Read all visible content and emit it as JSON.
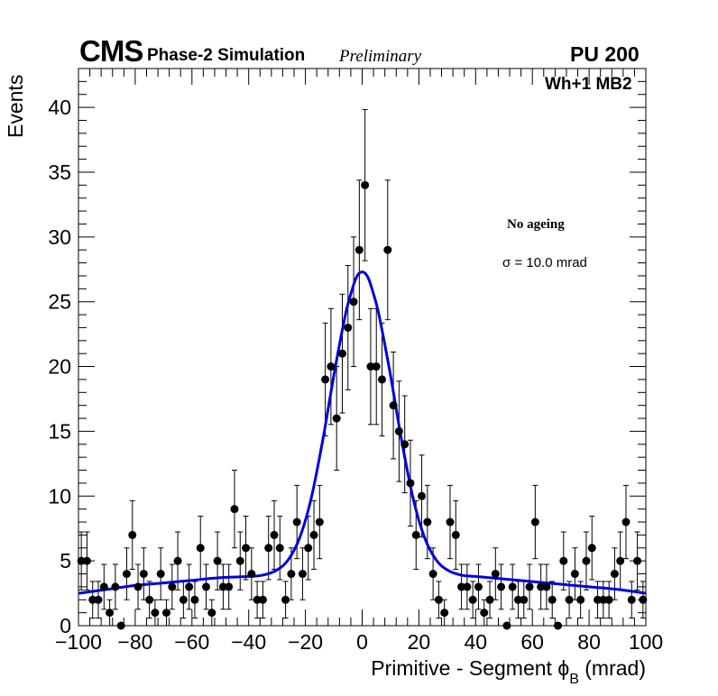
{
  "header": {
    "experiment": "CMS",
    "simulation": "Phase-2 Simulation",
    "status": "Preliminary",
    "pileup": "PU 200",
    "chamber": "Wh+1 MB2"
  },
  "legend": {
    "condition": "No ageing",
    "sigma_symbol": "σ",
    "sigma_text": "= 10.0 mrad"
  },
  "axes": {
    "x_title": "Primitive - Segment ϕ",
    "x_title_sub": "B",
    "x_title_unit": " (mrad)",
    "y_title": "Events"
  },
  "colors": {
    "fit": "#0000dd",
    "points": "#000000"
  },
  "chart_data": {
    "type": "scatter",
    "title": "CMS Phase-2 Simulation Preliminary",
    "xlabel": "Primitive - Segment ϕB (mrad)",
    "ylabel": "Events",
    "xlim": [
      -100,
      100
    ],
    "ylim": [
      0,
      43
    ],
    "x_ticks": [
      -100,
      -80,
      -60,
      -40,
      -20,
      0,
      20,
      40,
      60,
      80,
      100
    ],
    "y_ticks": [
      0,
      5,
      10,
      15,
      20,
      25,
      30,
      35,
      40
    ],
    "bin_width": 2,
    "x": [
      -99,
      -97,
      -95,
      -93,
      -91,
      -89,
      -87,
      -85,
      -83,
      -81,
      -79,
      -77,
      -75,
      -73,
      -71,
      -69,
      -67,
      -65,
      -63,
      -61,
      -59,
      -57,
      -55,
      -53,
      -51,
      -49,
      -47,
      -45,
      -43,
      -41,
      -39,
      -37,
      -35,
      -33,
      -31,
      -29,
      -27,
      -25,
      -23,
      -21,
      -19,
      -17,
      -15,
      -13,
      -11,
      -9,
      -7,
      -5,
      -3,
      -1,
      1,
      3,
      5,
      7,
      9,
      11,
      13,
      15,
      17,
      19,
      21,
      23,
      25,
      27,
      29,
      31,
      33,
      35,
      37,
      39,
      41,
      43,
      45,
      47,
      49,
      51,
      53,
      55,
      57,
      59,
      61,
      63,
      65,
      67,
      69,
      71,
      73,
      75,
      77,
      79,
      81,
      83,
      85,
      87,
      89,
      91,
      93,
      95,
      97,
      99
    ],
    "values": [
      5,
      5,
      2,
      2,
      3,
      1,
      3,
      0,
      4,
      7,
      3,
      4,
      2,
      1,
      4,
      1,
      3,
      5,
      2,
      3,
      2,
      6,
      3,
      1,
      5,
      3,
      3,
      9,
      5,
      6,
      4,
      2,
      2,
      6,
      7,
      6,
      2,
      4,
      8,
      4,
      6,
      7,
      8,
      19,
      20,
      16,
      21,
      23,
      25,
      29,
      34,
      20,
      20,
      19,
      29,
      17,
      15,
      14,
      11,
      7,
      10,
      8,
      4,
      2,
      1,
      8,
      7,
      3,
      3,
      2,
      3,
      1,
      2,
      4,
      3,
      0,
      3,
      2,
      2,
      3,
      8,
      3,
      3,
      2,
      0,
      5,
      2,
      4,
      2,
      5,
      6,
      2,
      2,
      2,
      4,
      5,
      8,
      2,
      5,
      2
    ],
    "fit": {
      "label": "σ = 10.0 mrad",
      "x": [
        -100,
        -90,
        -80,
        -70,
        -60,
        -50,
        -40,
        -35,
        -30,
        -26,
        -22,
        -18,
        -14,
        -10,
        -6,
        -4,
        -2,
        0,
        2,
        4,
        6,
        10,
        14,
        18,
        22,
        26,
        30,
        35,
        40,
        50,
        60,
        70,
        80,
        90,
        100
      ],
      "y": [
        2.5,
        2.8,
        3.1,
        3.3,
        3.5,
        3.7,
        3.8,
        3.9,
        4.3,
        5.1,
        6.8,
        9.8,
        14.2,
        19.3,
        23.9,
        25.6,
        26.9,
        27.3,
        26.9,
        25.6,
        23.9,
        19.3,
        14.2,
        9.8,
        6.8,
        5.1,
        4.3,
        3.9,
        3.8,
        3.6,
        3.4,
        3.2,
        3.0,
        2.8,
        2.5
      ]
    }
  }
}
